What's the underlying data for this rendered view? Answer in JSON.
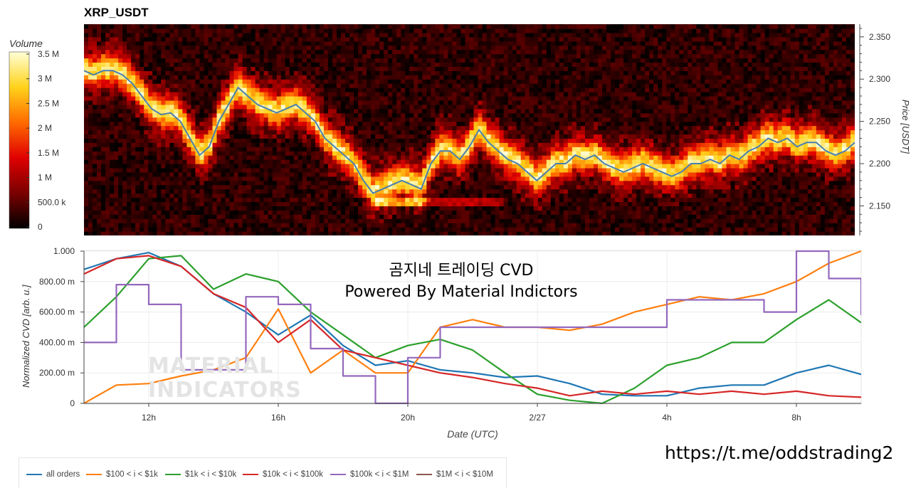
{
  "header": {
    "symbol": "XRP_USDT"
  },
  "overlay": {
    "title_line1": "곰지네 트레이딩 CVD",
    "title_line2": "Powered By Material Indictors",
    "url": "https://t.me/oddstrading2",
    "watermark_line1": "MATERIAL",
    "watermark_line2": "INDICATORS"
  },
  "chart_data": [
    {
      "type": "heatmap",
      "title": "XRP_USDT",
      "ylabel": "Price [USDT]",
      "yticks": [
        "2.150",
        "2.200",
        "2.250",
        "2.300",
        "2.350"
      ],
      "ylim": [
        2.115,
        2.365
      ],
      "colorbar": {
        "title": "Volume",
        "ticks": [
          "0",
          "500.0 k",
          "1 M",
          "1.5 M",
          "2 M",
          "2.5 M",
          "3 M",
          "3.5 M"
        ],
        "range": [
          0,
          3500000
        ],
        "colors": [
          "#000000",
          "#7a0000",
          "#e00000",
          "#ff6a00",
          "#ffd21a",
          "#ffffd6"
        ]
      },
      "price_series": {
        "name": "price",
        "color": "#4a7fb0",
        "x_hours": [
          0,
          0.3,
          0.6,
          0.9,
          1.2,
          1.5,
          1.8,
          2.1,
          2.4,
          2.7,
          3,
          3.3,
          3.6,
          3.9,
          4.2,
          4.5,
          4.8,
          5.1,
          5.4,
          5.7,
          6,
          6.3,
          6.6,
          6.9,
          7.2,
          7.5,
          7.8,
          8.1,
          8.4,
          8.7,
          9,
          9.3,
          9.6,
          9.9,
          10.2,
          10.5,
          10.8,
          11.1,
          11.4,
          11.7,
          12,
          12.3,
          12.6,
          12.9,
          13.2,
          13.5,
          13.8,
          14.1,
          14.4,
          14.7,
          15,
          15.3,
          15.6,
          15.9,
          16.2,
          16.5,
          16.8,
          17.1,
          17.4,
          17.7,
          18,
          18.3,
          18.6,
          18.9,
          19.2,
          19.5,
          19.8,
          20.1,
          20.4,
          20.7,
          21,
          21.3,
          21.6,
          21.9,
          22.2,
          22.5,
          22.8,
          23.1,
          23.4,
          23.7,
          24
        ],
        "y": [
          2.31,
          2.305,
          2.31,
          2.31,
          2.305,
          2.295,
          2.28,
          2.265,
          2.258,
          2.26,
          2.25,
          2.23,
          2.21,
          2.22,
          2.25,
          2.27,
          2.29,
          2.28,
          2.27,
          2.265,
          2.26,
          2.265,
          2.27,
          2.26,
          2.25,
          2.23,
          2.22,
          2.21,
          2.2,
          2.18,
          2.165,
          2.17,
          2.175,
          2.18,
          2.175,
          2.17,
          2.2,
          2.215,
          2.215,
          2.205,
          2.22,
          2.24,
          2.225,
          2.215,
          2.205,
          2.2,
          2.19,
          2.18,
          2.19,
          2.2,
          2.2,
          2.21,
          2.205,
          2.21,
          2.2,
          2.195,
          2.19,
          2.195,
          2.2,
          2.195,
          2.19,
          2.185,
          2.19,
          2.2,
          2.2,
          2.205,
          2.2,
          2.21,
          2.205,
          2.215,
          2.22,
          2.23,
          2.225,
          2.23,
          2.22,
          2.225,
          2.225,
          2.215,
          2.21,
          2.215,
          2.225
        ]
      },
      "xlabel": "",
      "xticks": [
        "12h",
        "16h",
        "20h",
        "2/27",
        "4h",
        "8h"
      ]
    },
    {
      "type": "line",
      "xlabel": "Date (UTC)",
      "ylabel": "Normalized CVD [arb. u.]",
      "yticks": [
        "0",
        "200.00 m",
        "400.00 m",
        "600.00 m",
        "800.00 m",
        "1.000"
      ],
      "ylim": [
        0,
        1
      ],
      "xticks": [
        "12h",
        "16h",
        "20h",
        "2/27",
        "4h",
        "8h"
      ],
      "x_hours": [
        0,
        1,
        2,
        3,
        4,
        5,
        6,
        7,
        8,
        9,
        10,
        11,
        12,
        13,
        14,
        15,
        16,
        17,
        18,
        19,
        20,
        21,
        22,
        23,
        24
      ],
      "series": [
        {
          "name": "all orders",
          "color": "#1f77b4",
          "values": [
            0.88,
            0.95,
            0.99,
            0.9,
            0.72,
            0.6,
            0.45,
            0.58,
            0.38,
            0.25,
            0.28,
            0.22,
            0.2,
            0.17,
            0.18,
            0.13,
            0.06,
            0.05,
            0.05,
            0.1,
            0.12,
            0.12,
            0.2,
            0.25,
            0.19
          ]
        },
        {
          "name": "$100 < i < $1k",
          "color": "#ff7f0e",
          "values": [
            0.0,
            0.12,
            0.13,
            0.18,
            0.22,
            0.3,
            0.62,
            0.2,
            0.35,
            0.2,
            0.2,
            0.5,
            0.55,
            0.5,
            0.5,
            0.48,
            0.52,
            0.6,
            0.65,
            0.7,
            0.68,
            0.72,
            0.8,
            0.92,
            1.0
          ]
        },
        {
          "name": "$1k < i < $10k",
          "color": "#2ca02c",
          "values": [
            0.5,
            0.7,
            0.95,
            0.97,
            0.75,
            0.85,
            0.8,
            0.6,
            0.45,
            0.3,
            0.38,
            0.42,
            0.35,
            0.2,
            0.06,
            0.02,
            0.0,
            0.1,
            0.25,
            0.3,
            0.4,
            0.4,
            0.55,
            0.68,
            0.53
          ]
        },
        {
          "name": "$10k < i < $100k",
          "color": "#d62728",
          "values": [
            0.85,
            0.95,
            0.97,
            0.9,
            0.72,
            0.63,
            0.4,
            0.55,
            0.35,
            0.3,
            0.25,
            0.2,
            0.17,
            0.13,
            0.1,
            0.05,
            0.08,
            0.06,
            0.08,
            0.06,
            0.08,
            0.06,
            0.08,
            0.05,
            0.04
          ]
        },
        {
          "name": "$100k < i < $1M",
          "color": "#9467bd",
          "values": [
            0.4,
            0.78,
            0.65,
            0.22,
            0.22,
            0.7,
            0.65,
            0.36,
            0.18,
            0.0,
            0.3,
            0.5,
            0.5,
            0.5,
            0.5,
            0.5,
            0.5,
            0.5,
            0.68,
            0.68,
            0.68,
            0.6,
            1.0,
            0.82,
            0.58
          ]
        },
        {
          "name": "$1M < i < $10M",
          "color": "#8c564b",
          "values": []
        }
      ]
    }
  ]
}
